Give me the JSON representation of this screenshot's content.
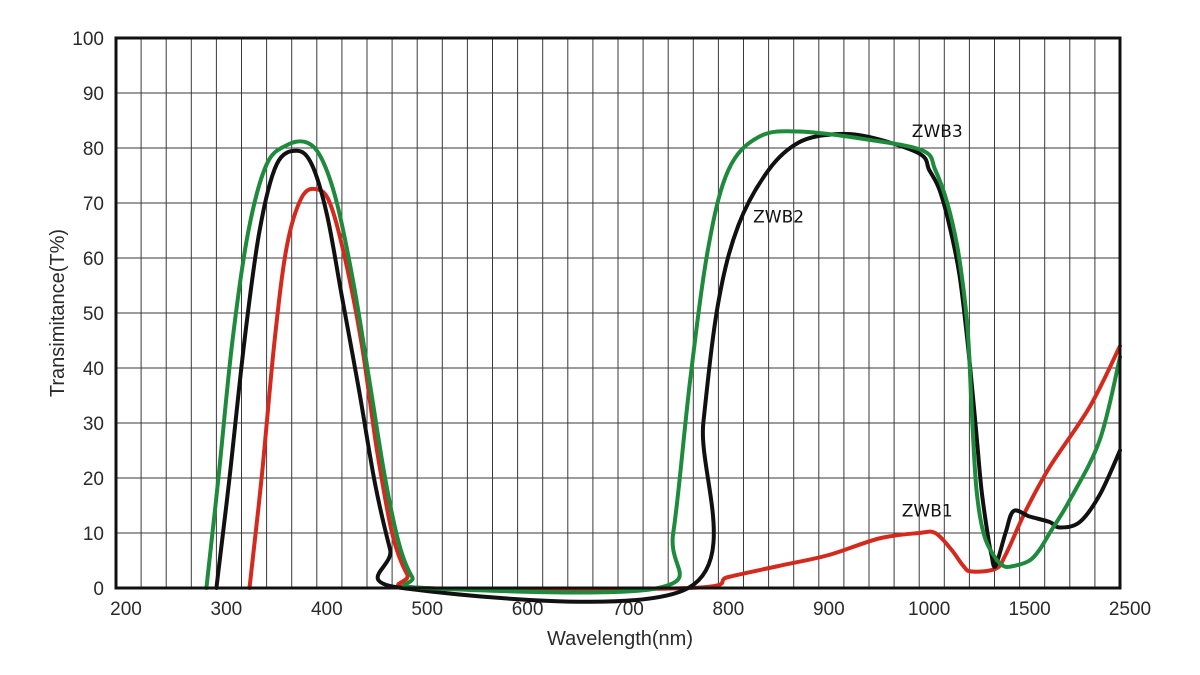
{
  "chart_data": {
    "type": "line",
    "xlabel": "Wavelength(nm)",
    "ylabel": "Transimitance(T%)",
    "ylim": [
      0,
      100
    ],
    "yticks": [
      0,
      10,
      20,
      30,
      40,
      50,
      60,
      70,
      80,
      90,
      100
    ],
    "xtick_labels": [
      "200",
      "300",
      "400",
      "500",
      "600",
      "700",
      "800",
      "900",
      "1000",
      "1500",
      "2500"
    ],
    "grid": true,
    "series": [
      {
        "name": "ZWB1",
        "color": "#d42a1e",
        "points": [
          [
            333,
            0
          ],
          [
            345,
            20
          ],
          [
            358,
            45
          ],
          [
            370,
            62
          ],
          [
            385,
            71
          ],
          [
            400,
            72.5
          ],
          [
            413,
            70
          ],
          [
            428,
            60
          ],
          [
            445,
            44
          ],
          [
            460,
            25
          ],
          [
            475,
            10
          ],
          [
            490,
            2.5
          ],
          [
            505,
            0
          ],
          [
            770,
            0
          ],
          [
            810,
            2
          ],
          [
            860,
            4
          ],
          [
            910,
            6
          ],
          [
            960,
            9
          ],
          [
            1000,
            10
          ],
          [
            1080,
            10
          ],
          [
            1160,
            7
          ],
          [
            1220,
            4
          ],
          [
            1260,
            3
          ],
          [
            1380,
            3.5
          ],
          [
            1430,
            6
          ],
          [
            1560,
            14
          ],
          [
            1800,
            22
          ],
          [
            2200,
            33
          ],
          [
            2500,
            44
          ]
        ]
      },
      {
        "name": "ZWB2",
        "color": "#111111",
        "points": [
          [
            300,
            0
          ],
          [
            313,
            20
          ],
          [
            328,
            45
          ],
          [
            343,
            65
          ],
          [
            360,
            77
          ],
          [
            380,
            79.5
          ],
          [
            395,
            77
          ],
          [
            410,
            68
          ],
          [
            425,
            53
          ],
          [
            442,
            36
          ],
          [
            458,
            19
          ],
          [
            473,
            7
          ],
          [
            485,
            0
          ],
          [
            770,
            0
          ],
          [
            785,
            30
          ],
          [
            800,
            52
          ],
          [
            820,
            66
          ],
          [
            850,
            76
          ],
          [
            880,
            81
          ],
          [
            915,
            82.5
          ],
          [
            950,
            82
          ],
          [
            1000,
            79
          ],
          [
            1050,
            76
          ],
          [
            1100,
            72.5
          ],
          [
            1150,
            66
          ],
          [
            1200,
            57
          ],
          [
            1240,
            45
          ],
          [
            1280,
            30
          ],
          [
            1310,
            18
          ],
          [
            1340,
            10
          ],
          [
            1360,
            6
          ],
          [
            1380,
            4
          ],
          [
            1430,
            10
          ],
          [
            1470,
            14
          ],
          [
            1600,
            13
          ],
          [
            1800,
            12
          ],
          [
            1900,
            11
          ],
          [
            2100,
            12
          ],
          [
            2300,
            17
          ],
          [
            2500,
            25
          ]
        ]
      },
      {
        "name": "ZWB3",
        "color": "#1e8a3c",
        "points": [
          [
            290,
            0
          ],
          [
            302,
            20
          ],
          [
            316,
            45
          ],
          [
            332,
            65
          ],
          [
            350,
            77
          ],
          [
            370,
            80.5
          ],
          [
            390,
            81
          ],
          [
            405,
            78
          ],
          [
            420,
            70
          ],
          [
            437,
            55
          ],
          [
            453,
            37
          ],
          [
            468,
            20
          ],
          [
            482,
            8
          ],
          [
            495,
            2
          ],
          [
            508,
            0
          ],
          [
            740,
            0
          ],
          [
            755,
            10
          ],
          [
            772,
            38
          ],
          [
            790,
            62
          ],
          [
            810,
            76
          ],
          [
            840,
            82
          ],
          [
            880,
            83
          ],
          [
            950,
            81.5
          ],
          [
            1020,
            79.5
          ],
          [
            1080,
            76
          ],
          [
            1140,
            70
          ],
          [
            1190,
            62
          ],
          [
            1225,
            53
          ],
          [
            1245,
            45
          ],
          [
            1262,
            32
          ],
          [
            1285,
            18
          ],
          [
            1320,
            10
          ],
          [
            1370,
            6
          ],
          [
            1420,
            4
          ],
          [
            1470,
            4
          ],
          [
            1600,
            5
          ],
          [
            1700,
            7
          ],
          [
            1800,
            10
          ],
          [
            2000,
            16
          ],
          [
            2300,
            27
          ],
          [
            2500,
            42
          ]
        ]
      }
    ],
    "annotations": [
      {
        "series": "ZWB1",
        "text": "ZWB1",
        "x": 1040,
        "y": 13
      },
      {
        "series": "ZWB2",
        "text": "ZWB2",
        "x": 860,
        "y": 66.5
      },
      {
        "series": "ZWB3",
        "text": "ZWB3",
        "x": 1090,
        "y": 82
      }
    ]
  }
}
